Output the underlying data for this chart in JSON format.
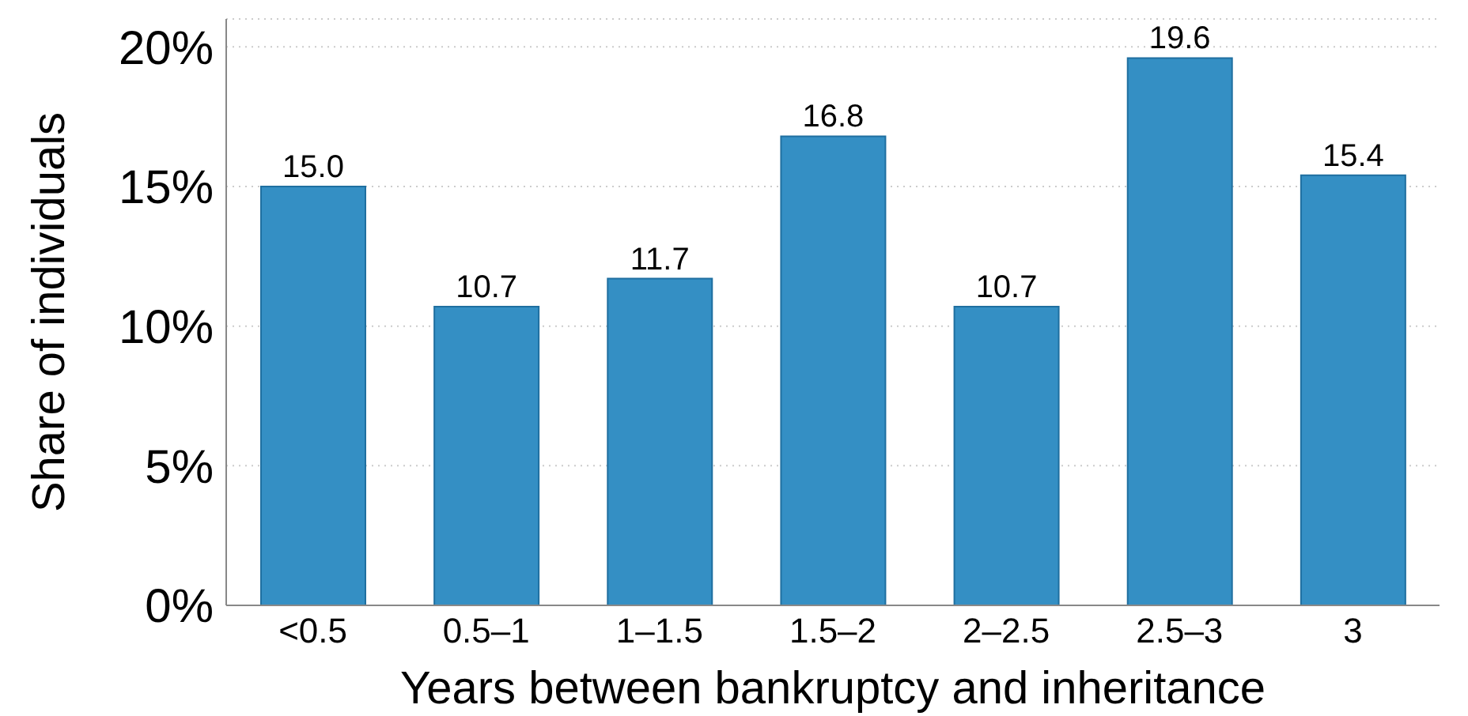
{
  "chart_data": {
    "type": "bar",
    "xlabel": "Years between bankruptcy and inheritance",
    "ylabel": "Share of individuals",
    "categories": [
      "<0.5",
      "0.5–1",
      "1–1.5",
      "1.5–2",
      "2–2.5",
      "2.5–3",
      "3"
    ],
    "values": [
      15.0,
      10.7,
      11.7,
      16.8,
      10.7,
      19.6,
      15.4
    ],
    "value_labels": [
      "15.0",
      "10.7",
      "11.7",
      "16.8",
      "10.7",
      "19.6",
      "15.4"
    ],
    "color": "#348fc4",
    "ylim": [
      0,
      21
    ],
    "yticks": [
      {
        "value": 0,
        "label": "0%"
      },
      {
        "value": 5,
        "label": "5%"
      },
      {
        "value": 10,
        "label": "10%"
      },
      {
        "value": 15,
        "label": "15%"
      },
      {
        "value": 20,
        "label": "20%"
      }
    ],
    "grid": "y"
  }
}
